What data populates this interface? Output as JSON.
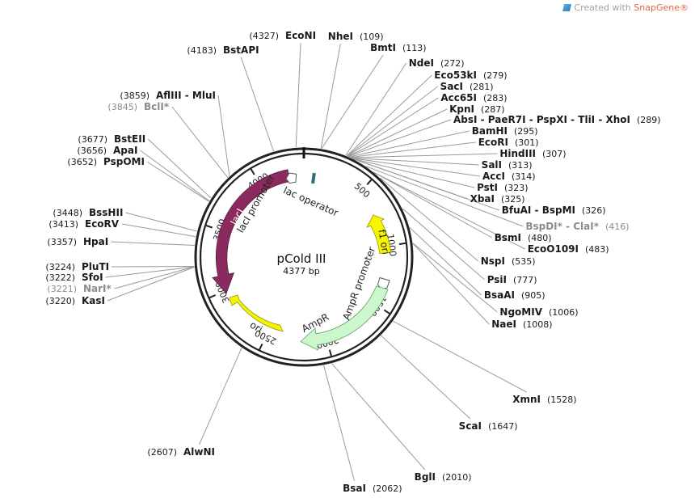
{
  "branding": {
    "prefix": "Created with ",
    "product": "SnapGene",
    "suffix": "®",
    "logo_icon": "snapgene-logo-icon"
  },
  "plasmid": {
    "name": "pCold III",
    "length_label": "4377 bp",
    "length": 4377
  },
  "ticks": [
    "500",
    "1000",
    "1500",
    "2000",
    "2500",
    "3000",
    "3500",
    "4000"
  ],
  "features": [
    {
      "key": "laci",
      "label": "lacI",
      "color": "#8b2a5e",
      "text_color": "#ffffff"
    },
    {
      "key": "laci_promoter",
      "label": "lacI promoter",
      "color": "#ffffff",
      "text_color": "#222222"
    },
    {
      "key": "lac_operator",
      "label": "lac operator",
      "color": "#2e6f77",
      "text_color": "#222222"
    },
    {
      "key": "f1_ori",
      "label": "f1 ori",
      "color": "#f5f500",
      "text_color": "#222222"
    },
    {
      "key": "ampr_promoter",
      "label": "AmpR promoter",
      "color": "#ffffff",
      "text_color": "#222222"
    },
    {
      "key": "ampr",
      "label": "AmpR",
      "color": "#ccf7cc",
      "text_color": "#222222"
    },
    {
      "key": "ori",
      "label": "ori",
      "color": "#f5f500",
      "text_color": "#222222"
    }
  ],
  "sites": [
    {
      "name": "EcoNI",
      "pos": "(4327)",
      "side": "left",
      "dim": false
    },
    {
      "name": "NheI",
      "pos": "(109)",
      "side": "right",
      "dim": false
    },
    {
      "name": "BmtI",
      "pos": "(113)",
      "side": "right",
      "dim": false
    },
    {
      "name": "BstAPI",
      "pos": "(4183)",
      "side": "left",
      "dim": false
    },
    {
      "name": "NdeI",
      "pos": "(272)",
      "side": "right",
      "dim": false
    },
    {
      "name": "Eco53kI",
      "pos": "(279)",
      "side": "right",
      "dim": false
    },
    {
      "name": "SacI",
      "pos": "(281)",
      "side": "right",
      "dim": false
    },
    {
      "name": "Acc65I",
      "pos": "(283)",
      "side": "right",
      "dim": false
    },
    {
      "name": "KpnI",
      "pos": "(287)",
      "side": "right",
      "dim": false
    },
    {
      "name": "AbsI - PaeR7I - PspXI - TliI - XhoI",
      "pos": "(289)",
      "side": "right",
      "dim": false
    },
    {
      "name": "BamHI",
      "pos": "(295)",
      "side": "right",
      "dim": false
    },
    {
      "name": "EcoRI",
      "pos": "(301)",
      "side": "right",
      "dim": false
    },
    {
      "name": "HindIII",
      "pos": "(307)",
      "side": "right",
      "dim": false
    },
    {
      "name": "SalI",
      "pos": "(313)",
      "side": "right",
      "dim": false
    },
    {
      "name": "AccI",
      "pos": "(314)",
      "side": "right",
      "dim": false
    },
    {
      "name": "PstI",
      "pos": "(323)",
      "side": "right",
      "dim": false
    },
    {
      "name": "XbaI",
      "pos": "(325)",
      "side": "right",
      "dim": false
    },
    {
      "name": "BfuAI - BspMI",
      "pos": "(326)",
      "side": "right",
      "dim": false
    },
    {
      "name": "BspDI* - ClaI*",
      "pos": "(416)",
      "side": "right",
      "dim": true
    },
    {
      "name": "BsmI",
      "pos": "(480)",
      "side": "right",
      "dim": false
    },
    {
      "name": "EcoO109I",
      "pos": "(483)",
      "side": "right",
      "dim": false
    },
    {
      "name": "NspI",
      "pos": "(535)",
      "side": "right",
      "dim": false
    },
    {
      "name": "PsiI",
      "pos": "(777)",
      "side": "right",
      "dim": false
    },
    {
      "name": "BsaAI",
      "pos": "(905)",
      "side": "right",
      "dim": false
    },
    {
      "name": "NgoMIV",
      "pos": "(1006)",
      "side": "right",
      "dim": false
    },
    {
      "name": "NaeI",
      "pos": "(1008)",
      "side": "right",
      "dim": false
    },
    {
      "name": "XmnI",
      "pos": "(1528)",
      "side": "right",
      "dim": false
    },
    {
      "name": "ScaI",
      "pos": "(1647)",
      "side": "right",
      "dim": false
    },
    {
      "name": "BglI",
      "pos": "(2010)",
      "side": "right",
      "dim": false
    },
    {
      "name": "BsaI",
      "pos": "(2062)",
      "side": "right",
      "dim": false
    },
    {
      "name": "AlwNI",
      "pos": "(2607)",
      "side": "left",
      "dim": false
    },
    {
      "name": "AflIII - MluI",
      "pos": "(3859)",
      "side": "left",
      "dim": false
    },
    {
      "name": "BclI*",
      "pos": "(3845)",
      "side": "left",
      "dim": true
    },
    {
      "name": "BstEII",
      "pos": "(3677)",
      "side": "left",
      "dim": false
    },
    {
      "name": "ApaI",
      "pos": "(3656)",
      "side": "left",
      "dim": false
    },
    {
      "name": "PspOMI",
      "pos": "(3652)",
      "side": "left",
      "dim": false
    },
    {
      "name": "BssHII",
      "pos": "(3448)",
      "side": "left",
      "dim": false
    },
    {
      "name": "EcoRV",
      "pos": "(3413)",
      "side": "left",
      "dim": false
    },
    {
      "name": "HpaI",
      "pos": "(3357)",
      "side": "left",
      "dim": false
    },
    {
      "name": "PluTI",
      "pos": "(3224)",
      "side": "left",
      "dim": false
    },
    {
      "name": "SfoI",
      "pos": "(3222)",
      "side": "left",
      "dim": false
    },
    {
      "name": "NarI*",
      "pos": "(3221)",
      "side": "left",
      "dim": true
    },
    {
      "name": "KasI",
      "pos": "(3220)",
      "side": "left",
      "dim": false
    }
  ]
}
